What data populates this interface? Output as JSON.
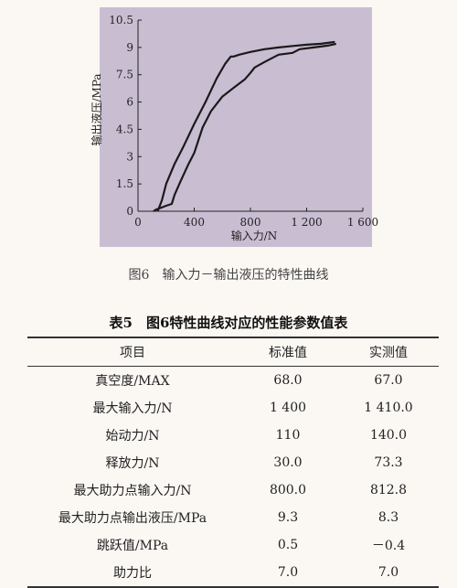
{
  "chart_data": {
    "type": "line",
    "xlabel": "输入力/N",
    "ylabel": "输出液压/MPa",
    "xlim": [
      0,
      1600
    ],
    "ylim": [
      0,
      10.5
    ],
    "x_ticks": [
      "0",
      "400",
      "800",
      "1 200",
      "1 600"
    ],
    "y_ticks": [
      "0",
      "1.5",
      "3",
      "4.5",
      "6",
      "7.5",
      "9",
      "10.5"
    ],
    "x_tick_values": [
      0,
      400,
      800,
      1200,
      1600
    ],
    "y_tick_values": [
      0,
      1.5,
      3,
      4.5,
      6,
      7.5,
      9,
      10.5
    ],
    "series": [
      {
        "x": [
          140,
          170,
          200,
          260,
          320,
          400,
          480,
          560,
          620,
          660,
          680,
          720,
          800,
          900,
          1000,
          1100,
          1200,
          1300,
          1400
        ],
        "y": [
          0,
          0.6,
          1.5,
          2.6,
          3.5,
          4.8,
          6.0,
          7.3,
          8.1,
          8.5,
          8.5,
          8.6,
          8.75,
          8.9,
          9.0,
          9.08,
          9.15,
          9.2,
          9.3
        ]
      },
      {
        "x": [
          110,
          130,
          150,
          200,
          240,
          260,
          300,
          360,
          400,
          460,
          520,
          600,
          700,
          760,
          800,
          830,
          900,
          1000,
          1100,
          1150,
          1250,
          1300,
          1350,
          1410
        ],
        "y": [
          0,
          0.1,
          0.15,
          0.3,
          0.4,
          0.9,
          1.6,
          2.6,
          3.2,
          4.6,
          5.5,
          6.3,
          6.9,
          7.25,
          7.6,
          7.9,
          8.2,
          8.6,
          8.7,
          8.9,
          9.0,
          9.05,
          9.1,
          9.2
        ]
      }
    ]
  },
  "figure_caption": "图6　输入力－输出液压的特性曲线",
  "table": {
    "title": "表5　图6特性曲线对应的性能参数值表",
    "headers": {
      "item": "项目",
      "standard": "标准值",
      "measured": "实测值"
    },
    "rows": [
      {
        "item": "真空度/MAX",
        "standard": "68.0",
        "measured": "67.0"
      },
      {
        "item": "最大输入力/N",
        "standard": "1 400",
        "measured": "1 410.0"
      },
      {
        "item": "始动力/N",
        "standard": "110",
        "measured": "140.0"
      },
      {
        "item": "释放力/N",
        "standard": "30.0",
        "measured": "73.3"
      },
      {
        "item": "最大助力点输入力/N",
        "standard": "800.0",
        "measured": "812.8"
      },
      {
        "item": "最大助力点输出液压/MPa",
        "standard": "9.3",
        "measured": "8.3"
      },
      {
        "item": "跳跃值/MPa",
        "standard": "0.5",
        "measured": "－0.4"
      },
      {
        "item": "助力比",
        "standard": "7.0",
        "measured": "7.0"
      }
    ]
  }
}
